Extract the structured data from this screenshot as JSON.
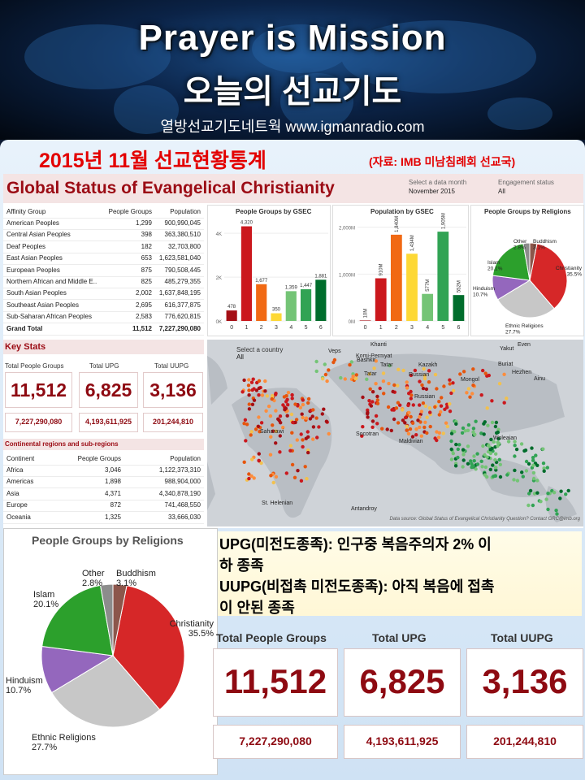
{
  "header": {
    "title_en": "Prayer is Mission",
    "title_ko": "오늘의 선교기도",
    "subtitle": "열방선교기도네트웍 www.igmanradio.com"
  },
  "board": {
    "title": "2015년 11월 선교현황통계",
    "source": "(자료: IMB 미남침례회 선교국)"
  },
  "dashboard": {
    "title": "Global Status of Evangelical Christianity",
    "filter_month_label": "Select a data month",
    "filter_month_value": "November 2015",
    "filter_status_label": "Engagement status",
    "filter_status_value": "All",
    "affinity_table": {
      "headers": [
        "Affinity Group",
        "People Groups",
        "Population"
      ],
      "rows": [
        [
          "American Peoples",
          "1,299",
          "900,990,045"
        ],
        [
          "Central Asian Peoples",
          "398",
          "363,380,510"
        ],
        [
          "Deaf Peoples",
          "182",
          "32,703,800"
        ],
        [
          "East Asian Peoples",
          "653",
          "1,623,581,040"
        ],
        [
          "European Peoples",
          "875",
          "790,508,445"
        ],
        [
          "Northern African and Middle E..",
          "825",
          "485,279,355"
        ],
        [
          "South Asian Peoples",
          "2,002",
          "1,637,848,195"
        ],
        [
          "Southeast Asian Peoples",
          "2,695",
          "616,377,875"
        ],
        [
          "Sub-Saharan African Peoples",
          "2,583",
          "776,620,815"
        ],
        [
          "Grand Total",
          "11,512",
          "7,227,290,080"
        ]
      ]
    },
    "key_stats": {
      "title": "Key Stats",
      "labels": [
        "Total People Groups",
        "Total UPG",
        "Total UUPG"
      ],
      "values": [
        "11,512",
        "6,825",
        "3,136"
      ],
      "populations": [
        "7,227,290,080",
        "4,193,611,925",
        "201,244,810"
      ]
    },
    "continent_table": {
      "title": "Continental regions and sub-regions",
      "headers": [
        "Continent",
        "People Groups",
        "Population"
      ],
      "rows": [
        [
          "Africa",
          "3,046",
          "1,122,373,310"
        ],
        [
          "Americas",
          "1,898",
          "988,904,000"
        ],
        [
          "Asia",
          "4,371",
          "4,340,878,190"
        ],
        [
          "Europe",
          "872",
          "741,468,550"
        ],
        [
          "Oceania",
          "1,325",
          "33,666,030"
        ]
      ]
    },
    "map": {
      "select_label": "Select a country",
      "select_value": "All",
      "labels": [
        "Khanti",
        "Veps",
        "Komi-Permyat",
        "Even",
        "Tatar",
        "Bashkir",
        "Tatar",
        "Russian",
        "Buriat",
        "Yakut",
        "Kazakh",
        "Mongol",
        "Russian",
        "Hezhen",
        "Ainu",
        "Saharawi",
        "Socotran",
        "Maldivian",
        "Woleaian",
        "St. Helenian",
        "Antandroy"
      ],
      "source": "Data source: Global Status of Evangelical Christianity Question? Contact GRC@imb.org"
    }
  },
  "chart_data": [
    {
      "type": "bar",
      "title": "People Groups by GSEC",
      "categories": [
        "0",
        "1",
        "2",
        "3",
        "4",
        "5",
        "6"
      ],
      "values": [
        478,
        4320,
        1677,
        350,
        1359,
        1447,
        1881
      ],
      "value_labels": [
        "478",
        "4,320",
        "1,677",
        "350",
        "1,359",
        "1,447",
        "1,881"
      ],
      "yticks": [
        "0K",
        "2K",
        "4K"
      ],
      "ylim": [
        0,
        4600
      ],
      "colors": [
        "#a50f15",
        "#cb181d",
        "#f16913",
        "#fdd835",
        "#74c476",
        "#31a354",
        "#006d2c"
      ]
    },
    {
      "type": "bar",
      "title": "Population by GSEC",
      "categories": [
        "0",
        "1",
        "2",
        "3",
        "4",
        "5",
        "6"
      ],
      "values": [
        10,
        910,
        1840,
        1434,
        577,
        1905,
        552
      ],
      "value_labels": [
        "10M",
        "910M",
        "1,840M",
        "1,434M",
        "577M",
        "1,905M",
        "552M"
      ],
      "yticks": [
        "0M",
        "1,000M",
        "2,000M"
      ],
      "ylim": [
        0,
        2150
      ],
      "colors": [
        "#a50f15",
        "#cb181d",
        "#f16913",
        "#fdd835",
        "#74c476",
        "#31a354",
        "#006d2c"
      ]
    },
    {
      "type": "pie",
      "title": "People Groups by Religions",
      "labels": [
        "Christianity",
        "Ethnic Religions",
        "Hinduism",
        "Islam",
        "Other",
        "Buddhism"
      ],
      "values": [
        35.5,
        27.7,
        10.7,
        20.1,
        2.8,
        3.1
      ],
      "value_labels": [
        "35.5%",
        "27.7%",
        "10.7%",
        "20.1%",
        "2.8%",
        "3.1%"
      ],
      "colors": [
        "#d62728",
        "#c7c7c7",
        "#9467bd",
        "#2ca02c",
        "#8c8c8c",
        "#8c564b"
      ]
    }
  ],
  "note": {
    "line1": "UPG(미전도종족): 인구중 복음주의자 2% 이",
    "line2": "하 종족",
    "line3": "UUPG(비접촉 미전도종족): 아직 복음에 접촉",
    "line4": "이 안된 종족"
  }
}
